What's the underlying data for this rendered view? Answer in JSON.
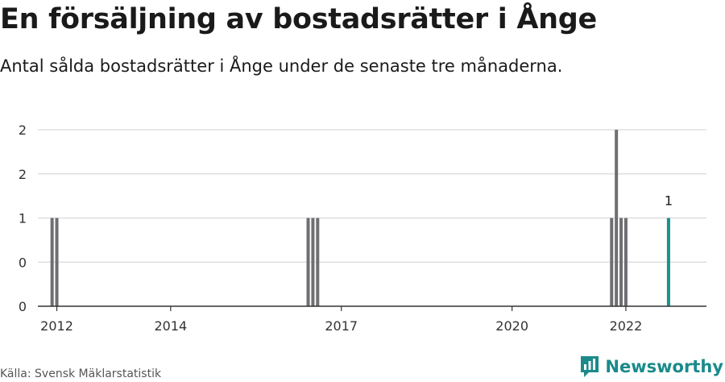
{
  "title": "En försäljning av bostadsrätter i Ånge",
  "subtitle": "Antal sålda bostadsrätter i Ånge under de senaste tre månaderna.",
  "source": "Källa: Svensk Mäklarstatistik",
  "brand": "Newsworthy",
  "colors": {
    "bar": "#6e6e73",
    "highlight": "#18918c",
    "grid": "#d9d9d9",
    "axis": "#333333",
    "brand": "#1a8a8a"
  },
  "chart_data": {
    "type": "bar",
    "xlim": [
      "2011-09",
      "2023-06"
    ],
    "ylim": [
      0,
      2
    ],
    "y_ticks": [
      {
        "value": 0,
        "label": "0"
      },
      {
        "value": 0.5,
        "label": "0"
      },
      {
        "value": 1,
        "label": "1"
      },
      {
        "value": 1.5,
        "label": "2"
      },
      {
        "value": 2,
        "label": "2"
      }
    ],
    "x_ticks": [
      {
        "date": "2012-01",
        "label": "2012"
      },
      {
        "date": "2014-01",
        "label": "2014"
      },
      {
        "date": "2017-01",
        "label": "2017"
      },
      {
        "date": "2020-01",
        "label": "2020"
      },
      {
        "date": "2022-01",
        "label": "2022"
      }
    ],
    "bars": [
      {
        "date": "2011-12",
        "value": 1
      },
      {
        "date": "2012-01",
        "value": 1
      },
      {
        "date": "2016-06",
        "value": 1
      },
      {
        "date": "2016-07",
        "value": 1
      },
      {
        "date": "2016-08",
        "value": 1
      },
      {
        "date": "2021-10",
        "value": 1
      },
      {
        "date": "2021-11",
        "value": 2
      },
      {
        "date": "2021-12",
        "value": 1
      },
      {
        "date": "2022-01",
        "value": 1
      },
      {
        "date": "2022-10",
        "value": 1,
        "highlight": true,
        "label": "1"
      }
    ]
  }
}
